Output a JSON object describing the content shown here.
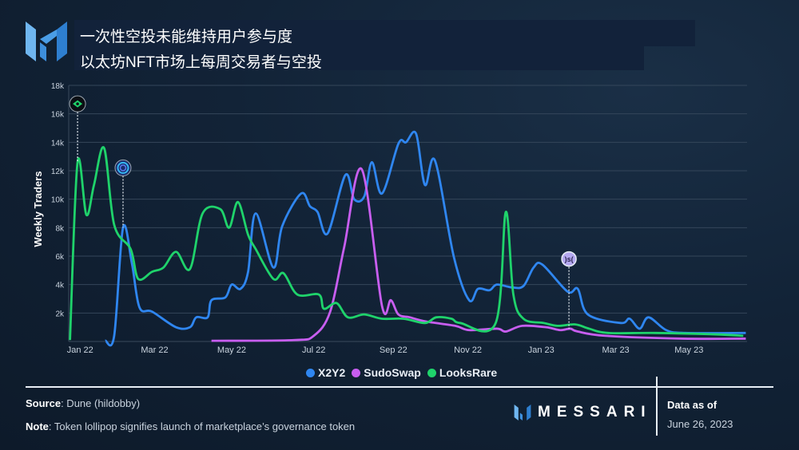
{
  "header": {
    "title_line1": "一次性空投未能维持用户参与度",
    "title_line2": "以太坊NFT市场上每周交易者与空投"
  },
  "footer": {
    "source_label": "Source",
    "source_text": ": Dune (hildobby)",
    "note_label": "Note",
    "note_text": ": Token lollipop signifies launch of marketplace’s governance token",
    "brand": "MESSARI",
    "data_as_of_label": "Data as of",
    "data_as_of_date": "June 26, 2023"
  },
  "chart_data": {
    "type": "line",
    "title": "",
    "xlabel": "",
    "ylabel": "Weekly Traders",
    "ylim": [
      0,
      18000
    ],
    "xlim": [
      "2021-12-23",
      "2023-06-13"
    ],
    "grid": true,
    "legend_position": "bottom",
    "yticks": [
      {
        "v": 2000,
        "label": "2k"
      },
      {
        "v": 4000,
        "label": "4k"
      },
      {
        "v": 6000,
        "label": "6k"
      },
      {
        "v": 8000,
        "label": "8k"
      },
      {
        "v": 10000,
        "label": "10k"
      },
      {
        "v": 12000,
        "label": "12k"
      },
      {
        "v": 14000,
        "label": "14k"
      },
      {
        "v": 16000,
        "label": "16k"
      },
      {
        "v": 18000,
        "label": "18k"
      }
    ],
    "xticks": [
      {
        "d": "2022-01-01",
        "label": "Jan 22"
      },
      {
        "d": "2022-03-01",
        "label": "Mar 22"
      },
      {
        "d": "2022-05-01",
        "label": "May 22"
      },
      {
        "d": "2022-07-05",
        "label": "Jul 22"
      },
      {
        "d": "2022-09-06",
        "label": "Sep 22"
      },
      {
        "d": "2022-11-04",
        "label": "Nov 22"
      },
      {
        "d": "2023-01-01",
        "label": "Jan 23"
      },
      {
        "d": "2023-03-01",
        "label": "Mar 23"
      },
      {
        "d": "2023-04-28",
        "label": "May 23"
      }
    ],
    "series": [
      {
        "name": "X2Y2",
        "color": "#2f86f0",
        "points": [
          [
            "2022-01-21",
            50
          ],
          [
            "2022-01-28",
            400
          ],
          [
            "2022-02-04",
            8000
          ],
          [
            "2022-02-11",
            5500
          ],
          [
            "2022-02-17",
            2400
          ],
          [
            "2022-02-27",
            2100
          ],
          [
            "2022-03-18",
            1000
          ],
          [
            "2022-03-29",
            1000
          ],
          [
            "2022-04-03",
            1700
          ],
          [
            "2022-04-12",
            1700
          ],
          [
            "2022-04-15",
            2900
          ],
          [
            "2022-04-26",
            3100
          ],
          [
            "2022-05-01",
            4000
          ],
          [
            "2022-05-08",
            3700
          ],
          [
            "2022-05-14",
            4900
          ],
          [
            "2022-05-20",
            9000
          ],
          [
            "2022-06-03",
            5200
          ],
          [
            "2022-06-10",
            8100
          ],
          [
            "2022-06-25",
            10400
          ],
          [
            "2022-07-02",
            9500
          ],
          [
            "2022-07-08",
            9100
          ],
          [
            "2022-07-16",
            7600
          ],
          [
            "2022-07-30",
            11700
          ],
          [
            "2022-08-06",
            10000
          ],
          [
            "2022-08-14",
            10200
          ],
          [
            "2022-08-20",
            12600
          ],
          [
            "2022-08-28",
            10400
          ],
          [
            "2022-09-10",
            13900
          ],
          [
            "2022-09-16",
            14000
          ],
          [
            "2022-09-24",
            14600
          ],
          [
            "2022-10-01",
            11000
          ],
          [
            "2022-10-09",
            12700
          ],
          [
            "2022-10-24",
            5900
          ],
          [
            "2022-11-05",
            2900
          ],
          [
            "2022-11-12",
            3700
          ],
          [
            "2022-11-21",
            3600
          ],
          [
            "2022-11-27",
            4000
          ],
          [
            "2022-12-09",
            3800
          ],
          [
            "2022-12-18",
            3900
          ],
          [
            "2022-12-26",
            5200
          ],
          [
            "2023-01-02",
            5400
          ],
          [
            "2023-01-22",
            3500
          ],
          [
            "2023-01-30",
            3700
          ],
          [
            "2023-02-07",
            1900
          ],
          [
            "2023-03-05",
            1300
          ],
          [
            "2023-03-12",
            1600
          ],
          [
            "2023-03-20",
            900
          ],
          [
            "2023-03-27",
            1700
          ],
          [
            "2023-04-10",
            800
          ],
          [
            "2023-04-25",
            600
          ],
          [
            "2023-06-12",
            600
          ]
        ]
      },
      {
        "name": "SudoSwap",
        "color": "#c85ef0",
        "points": [
          [
            "2022-04-15",
            50
          ],
          [
            "2022-06-19",
            100
          ],
          [
            "2022-07-05",
            400
          ],
          [
            "2022-07-18",
            2100
          ],
          [
            "2022-07-29",
            6600
          ],
          [
            "2022-08-12",
            12100
          ],
          [
            "2022-08-28",
            2500
          ],
          [
            "2022-09-04",
            2900
          ],
          [
            "2022-09-10",
            1900
          ],
          [
            "2022-09-19",
            1700
          ],
          [
            "2022-10-02",
            1400
          ],
          [
            "2022-10-25",
            1100
          ],
          [
            "2022-11-05",
            800
          ],
          [
            "2022-11-27",
            900
          ],
          [
            "2022-12-04",
            700
          ],
          [
            "2022-12-17",
            1100
          ],
          [
            "2023-01-05",
            1000
          ],
          [
            "2023-01-16",
            800
          ],
          [
            "2023-01-24",
            900
          ],
          [
            "2023-01-30",
            700
          ],
          [
            "2023-02-21",
            400
          ],
          [
            "2023-04-23",
            200
          ],
          [
            "2023-06-12",
            200
          ]
        ]
      },
      {
        "name": "LooksRare",
        "color": "#1fd36b",
        "points": [
          [
            "2021-12-24",
            100
          ],
          [
            "2021-12-30",
            12600
          ],
          [
            "2022-01-06",
            8900
          ],
          [
            "2022-01-12",
            11000
          ],
          [
            "2022-01-20",
            13600
          ],
          [
            "2022-01-28",
            8200
          ],
          [
            "2022-02-10",
            6500
          ],
          [
            "2022-02-16",
            4400
          ],
          [
            "2022-02-27",
            4900
          ],
          [
            "2022-03-08",
            5200
          ],
          [
            "2022-03-18",
            6300
          ],
          [
            "2022-03-29",
            5100
          ],
          [
            "2022-04-08",
            9000
          ],
          [
            "2022-04-22",
            9300
          ],
          [
            "2022-04-29",
            8000
          ],
          [
            "2022-05-06",
            9800
          ],
          [
            "2022-05-14",
            7500
          ],
          [
            "2022-05-20",
            6500
          ],
          [
            "2022-06-03",
            4400
          ],
          [
            "2022-06-11",
            4800
          ],
          [
            "2022-06-22",
            3300
          ],
          [
            "2022-07-09",
            3300
          ],
          [
            "2022-07-13",
            2300
          ],
          [
            "2022-07-23",
            2700
          ],
          [
            "2022-08-01",
            1700
          ],
          [
            "2022-08-14",
            1900
          ],
          [
            "2022-08-28",
            1600
          ],
          [
            "2022-09-14",
            1600
          ],
          [
            "2022-10-01",
            1300
          ],
          [
            "2022-10-10",
            1700
          ],
          [
            "2022-10-22",
            1600
          ],
          [
            "2022-10-29",
            1300
          ],
          [
            "2022-11-26",
            1300
          ],
          [
            "2022-12-04",
            9100
          ],
          [
            "2022-12-10",
            3300
          ],
          [
            "2022-12-18",
            1600
          ],
          [
            "2023-01-03",
            1300
          ],
          [
            "2023-01-14",
            1100
          ],
          [
            "2023-01-28",
            1200
          ],
          [
            "2023-02-08",
            900
          ],
          [
            "2023-02-23",
            600
          ],
          [
            "2023-04-02",
            600
          ],
          [
            "2023-05-19",
            500
          ],
          [
            "2023-06-10",
            400
          ]
        ]
      }
    ],
    "annotations": [
      {
        "series": "LooksRare",
        "date": "2021-12-30",
        "marker_value": 16700,
        "icon": "looksrare-token-icon",
        "color": "#1fd36b"
      },
      {
        "series": "X2Y2",
        "date": "2022-02-04",
        "marker_value": 12200,
        "icon": "x2y2-token-icon",
        "color": "#2f86f0"
      },
      {
        "series": "SudoSwap",
        "date": "2023-01-23",
        "marker_value": 5800,
        "icon": "sudoswap-token-icon",
        "color": "#b4a8f0",
        "glyph": ")s("
      }
    ]
  }
}
